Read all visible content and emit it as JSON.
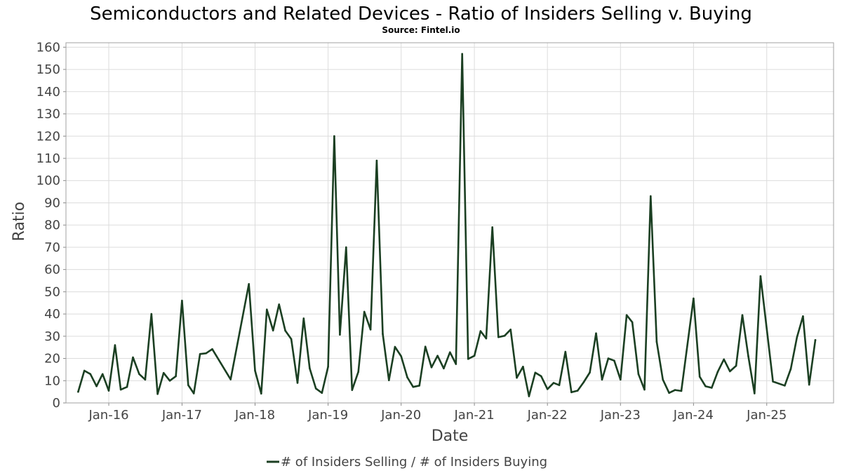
{
  "chart_data": {
    "type": "line",
    "title": "Semiconductors and Related Devices - Ratio of Insiders Selling v. Buying",
    "subtitle": "Source: Fintel.io",
    "xlabel": "Date",
    "ylabel": "Ratio",
    "ylim": [
      0,
      162
    ],
    "xlim": [
      "2015-06-01",
      "2025-12-01"
    ],
    "yticks": [
      0,
      10,
      20,
      30,
      40,
      50,
      60,
      70,
      80,
      90,
      100,
      110,
      120,
      130,
      140,
      150,
      160
    ],
    "xticks": [
      {
        "date": "2016-01-01",
        "label": "Jan-16"
      },
      {
        "date": "2017-01-01",
        "label": "Jan-17"
      },
      {
        "date": "2018-01-01",
        "label": "Jan-18"
      },
      {
        "date": "2019-01-01",
        "label": "Jan-19"
      },
      {
        "date": "2020-01-01",
        "label": "Jan-20"
      },
      {
        "date": "2021-01-01",
        "label": "Jan-21"
      },
      {
        "date": "2022-01-01",
        "label": "Jan-22"
      },
      {
        "date": "2023-01-01",
        "label": "Jan-23"
      },
      {
        "date": "2024-01-01",
        "label": "Jan-24"
      },
      {
        "date": "2025-01-01",
        "label": "Jan-25"
      }
    ],
    "grid": true,
    "legend_position": "bottom-center",
    "series": [
      {
        "name": "# of Insiders Selling / # of Insiders Buying",
        "color": "#1b3f22",
        "points": [
          [
            "2015-08-01",
            5
          ],
          [
            "2015-09-01",
            14.5
          ],
          [
            "2015-10-01",
            13
          ],
          [
            "2015-11-01",
            7.5
          ],
          [
            "2015-12-01",
            13
          ],
          [
            "2016-01-01",
            5.5
          ],
          [
            "2016-02-01",
            26
          ],
          [
            "2016-03-01",
            6
          ],
          [
            "2016-04-01",
            7.2
          ],
          [
            "2016-05-01",
            20.5
          ],
          [
            "2016-06-01",
            13
          ],
          [
            "2016-07-01",
            10.5
          ],
          [
            "2016-08-01",
            40
          ],
          [
            "2016-09-01",
            4
          ],
          [
            "2016-10-01",
            13.5
          ],
          [
            "2016-11-01",
            10
          ],
          [
            "2016-12-01",
            12
          ],
          [
            "2017-01-01",
            46
          ],
          [
            "2017-02-01",
            8
          ],
          [
            "2017-03-01",
            4.3
          ],
          [
            "2017-04-01",
            22
          ],
          [
            "2017-05-01",
            22.3
          ],
          [
            "2017-06-01",
            24.2
          ],
          [
            "2017-09-01",
            10.6
          ],
          [
            "2017-12-01",
            53.5
          ],
          [
            "2018-01-01",
            14.5
          ],
          [
            "2018-02-01",
            4.2
          ],
          [
            "2018-03-01",
            42
          ],
          [
            "2018-04-01",
            32.6
          ],
          [
            "2018-05-01",
            44.3
          ],
          [
            "2018-06-01",
            32.5
          ],
          [
            "2018-07-01",
            28.7
          ],
          [
            "2018-08-01",
            9
          ],
          [
            "2018-09-01",
            38
          ],
          [
            "2018-10-01",
            15.5
          ],
          [
            "2018-11-01",
            6.5
          ],
          [
            "2018-12-01",
            4.5
          ],
          [
            "2019-01-01",
            16.3
          ],
          [
            "2019-02-01",
            120
          ],
          [
            "2019-03-01",
            30.7
          ],
          [
            "2019-04-01",
            70
          ],
          [
            "2019-05-01",
            5.8
          ],
          [
            "2019-06-01",
            14
          ],
          [
            "2019-07-01",
            41
          ],
          [
            "2019-08-01",
            33
          ],
          [
            "2019-09-01",
            109
          ],
          [
            "2019-10-01",
            31
          ],
          [
            "2019-11-01",
            10.2
          ],
          [
            "2019-12-01",
            25.2
          ],
          [
            "2020-01-01",
            21
          ],
          [
            "2020-02-01",
            11.5
          ],
          [
            "2020-03-01",
            7.2
          ],
          [
            "2020-04-01",
            7.8
          ],
          [
            "2020-05-01",
            25.3
          ],
          [
            "2020-06-01",
            16
          ],
          [
            "2020-07-01",
            21.2
          ],
          [
            "2020-08-01",
            15.5
          ],
          [
            "2020-09-01",
            22.8
          ],
          [
            "2020-10-01",
            17.5
          ],
          [
            "2020-11-01",
            157
          ],
          [
            "2020-12-01",
            19.8
          ],
          [
            "2021-01-01",
            21.2
          ],
          [
            "2021-02-01",
            32.3
          ],
          [
            "2021-03-01",
            29
          ],
          [
            "2021-04-01",
            79
          ],
          [
            "2021-05-01",
            29.6
          ],
          [
            "2021-06-01",
            30.2
          ],
          [
            "2021-07-01",
            33
          ],
          [
            "2021-08-01",
            11.3
          ],
          [
            "2021-09-01",
            16.3
          ],
          [
            "2021-10-01",
            3
          ],
          [
            "2021-11-01",
            13.6
          ],
          [
            "2021-12-01",
            12
          ],
          [
            "2022-01-01",
            6.2
          ],
          [
            "2022-02-01",
            9
          ],
          [
            "2022-03-01",
            8
          ],
          [
            "2022-04-01",
            23
          ],
          [
            "2022-05-01",
            4.8
          ],
          [
            "2022-06-01",
            5.5
          ],
          [
            "2022-07-01",
            9.3
          ],
          [
            "2022-08-01",
            13.7
          ],
          [
            "2022-09-01",
            31.3
          ],
          [
            "2022-10-01",
            10.5
          ],
          [
            "2022-11-01",
            20
          ],
          [
            "2022-12-01",
            19
          ],
          [
            "2023-01-01",
            10.5
          ],
          [
            "2023-02-01",
            39.5
          ],
          [
            "2023-03-01",
            36.3
          ],
          [
            "2023-04-01",
            13
          ],
          [
            "2023-05-01",
            6
          ],
          [
            "2023-06-01",
            93
          ],
          [
            "2023-07-01",
            27.5
          ],
          [
            "2023-08-01",
            10.5
          ],
          [
            "2023-09-01",
            4.5
          ],
          [
            "2023-10-01",
            5.8
          ],
          [
            "2023-11-01",
            5.4
          ],
          [
            "2024-01-01",
            47
          ],
          [
            "2024-02-01",
            11.8
          ],
          [
            "2024-03-01",
            7.5
          ],
          [
            "2024-04-01",
            6.8
          ],
          [
            "2024-05-01",
            14
          ],
          [
            "2024-06-01",
            19.6
          ],
          [
            "2024-07-01",
            14.2
          ],
          [
            "2024-08-01",
            16.7
          ],
          [
            "2024-09-01",
            39.5
          ],
          [
            "2024-10-01",
            21
          ],
          [
            "2024-11-01",
            4.3
          ],
          [
            "2024-12-01",
            57
          ],
          [
            "2025-02-01",
            9.6
          ],
          [
            "2025-04-01",
            7.8
          ],
          [
            "2025-05-01",
            15.3
          ],
          [
            "2025-06-01",
            29.5
          ],
          [
            "2025-07-01",
            39
          ],
          [
            "2025-08-01",
            8.2
          ],
          [
            "2025-09-01",
            28.3
          ]
        ]
      }
    ]
  }
}
